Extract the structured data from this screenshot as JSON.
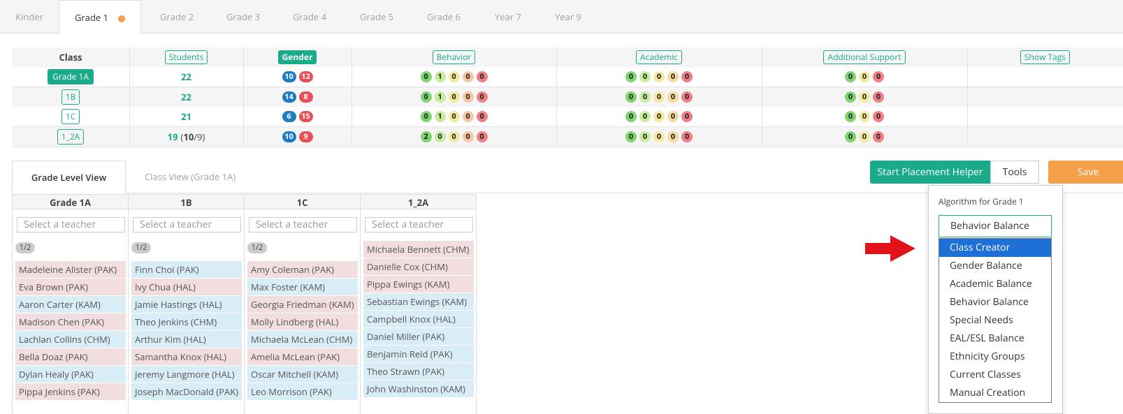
{
  "tabs": {
    "items": [
      "Kinder",
      "Grade 1",
      "Grade 2",
      "Grade 3",
      "Grade 4",
      "Grade 5",
      "Grade 6",
      "Year 7",
      "Year 9"
    ],
    "active": 1
  },
  "summary": {
    "headers": [
      "Class",
      "Students",
      "Gender",
      "Behavior",
      "Academic",
      "Additional Support",
      "Show Tags"
    ],
    "palettes": {
      "gender": [
        "#1f7bc1",
        "#e5505a"
      ],
      "behavior": [
        "#7ed46f",
        "#c9ed9f",
        "#f3e9a0",
        "#f6c7a0",
        "#ef7f84"
      ],
      "academic": [
        "#7ed46f",
        "#c9ed9f",
        "#f3e9a0",
        "#f6d9a0",
        "#ef7f84"
      ],
      "support": [
        "#7ed46f",
        "#f3e9a0",
        "#ef7f84"
      ]
    },
    "rows": [
      {
        "class": "Grade 1A",
        "students": "22",
        "gender": [
          "10",
          "12"
        ],
        "behavior": [
          "0",
          "1",
          "0",
          "0",
          "0"
        ],
        "academic": [
          "0",
          "0",
          "0",
          "0",
          "0"
        ],
        "support": [
          "0",
          "0",
          "0"
        ]
      },
      {
        "class": "1B",
        "students": "22",
        "gender": [
          "14",
          "8"
        ],
        "behavior": [
          "0",
          "1",
          "0",
          "0",
          "0"
        ],
        "academic": [
          "0",
          "0",
          "0",
          "0",
          "0"
        ],
        "support": [
          "0",
          "0",
          "0"
        ]
      },
      {
        "class": "1C",
        "students": "21",
        "gender": [
          "6",
          "15"
        ],
        "behavior": [
          "0",
          "1",
          "0",
          "0",
          "0"
        ],
        "academic": [
          "0",
          "0",
          "0",
          "0",
          "0"
        ],
        "support": [
          "0",
          "0",
          "0"
        ]
      },
      {
        "class": "1_2A",
        "students": "19",
        "students_extra": [
          "(",
          "10",
          "/9)"
        ],
        "gender": [
          "10",
          "9"
        ],
        "behavior": [
          "2",
          "0",
          "0",
          "0",
          "0"
        ],
        "academic": [
          "0",
          "0",
          "0",
          "0",
          "0"
        ],
        "support": [
          "0",
          "0",
          "0"
        ]
      }
    ]
  },
  "views": {
    "tabs": [
      "Grade Level View",
      "Class View (Grade 1A)"
    ]
  },
  "buttons": {
    "helper": "Start Placement Helper",
    "tools": "Tools",
    "save": "Save"
  },
  "algorithm": {
    "label": "Algorithm for Grade 1",
    "selected": "Behavior Balance",
    "options": [
      "Class Creator",
      "Gender Balance",
      "Academic Balance",
      "Behavior Balance",
      "Special Needs",
      "EAL/ESL Balance",
      "Ethnicity Groups",
      "Current Classes",
      "Manual Creation"
    ],
    "highlighted": 0
  },
  "columns": [
    {
      "name": "Grade 1A",
      "teacher": "Select a teacher",
      "badge": "1/2",
      "students": [
        {
          "name": "Madeleine Alister (PAK)",
          "color": "#f2dede"
        },
        {
          "name": "Eva Brown (PAK)",
          "color": "#f2dede"
        },
        {
          "name": "Aaron Carter (KAM)",
          "color": "#d9edf7"
        },
        {
          "name": "Madison Chen (PAK)",
          "color": "#f2dede"
        },
        {
          "name": "Lachlan Collins (CHM)",
          "color": "#d9edf7"
        },
        {
          "name": "Bella Doaz (PAK)",
          "color": "#f2dede"
        },
        {
          "name": "Dylan Healy (PAK)",
          "color": "#d9edf7"
        },
        {
          "name": "Pippa Jenkins (PAK)",
          "color": "#f2dede"
        }
      ]
    },
    {
      "name": "1B",
      "teacher": "Select a teacher",
      "badge": "1/2",
      "students": [
        {
          "name": "Finn Choi (PAK)",
          "color": "#d9edf7"
        },
        {
          "name": "Ivy Chua (HAL)",
          "color": "#f2dede"
        },
        {
          "name": "Jamie Hastings (HAL)",
          "color": "#d9edf7"
        },
        {
          "name": "Theo Jenkins (CHM)",
          "color": "#d9edf7"
        },
        {
          "name": "Arthur Kim (HAL)",
          "color": "#d9edf7"
        },
        {
          "name": "Samantha Knox (HAL)",
          "color": "#f2dede"
        },
        {
          "name": "Jeremy Langmore (HAL)",
          "color": "#d9edf7"
        },
        {
          "name": "Joseph MacDonald (PAK)",
          "color": "#d9edf7"
        }
      ]
    },
    {
      "name": "1C",
      "teacher": "Select a teacher",
      "badge": "1/2",
      "students": [
        {
          "name": "Amy Coleman (PAK)",
          "color": "#f2dede"
        },
        {
          "name": "Max Foster (KAM)",
          "color": "#d9edf7"
        },
        {
          "name": "Georgia Friedman (KAM)",
          "color": "#f2dede"
        },
        {
          "name": "Molly Lindberg (HAL)",
          "color": "#f2dede"
        },
        {
          "name": "Michaela McLean (CHM)",
          "color": "#d9edf7"
        },
        {
          "name": "Amelia McLean (PAK)",
          "color": "#f2dede"
        },
        {
          "name": "Oscar Mitchell (KAM)",
          "color": "#d9edf7"
        },
        {
          "name": "Leo Morrison (PAK)",
          "color": "#d9edf7"
        }
      ]
    },
    {
      "name": "1_2A",
      "teacher": "Select a teacher",
      "students": [
        {
          "name": "Michaela Bennett (CHM)",
          "color": "#f2dede"
        },
        {
          "name": "Danielle Cox (CHM)",
          "color": "#f2dede"
        },
        {
          "name": "Pippa Ewings (KAM)",
          "color": "#f2dede"
        },
        {
          "name": "Sebastian Ewings (KAM)",
          "color": "#d9edf7"
        },
        {
          "name": "Campbell Knox (HAL)",
          "color": "#d9edf7"
        },
        {
          "name": "Daniel Miller (PAK)",
          "color": "#d9edf7"
        },
        {
          "name": "Benjamin Reid (PAK)",
          "color": "#d9edf7"
        },
        {
          "name": "Theo Strawn (PAK)",
          "color": "#d9edf7"
        },
        {
          "name": "John Washinston (KAM)",
          "color": "#d9edf7"
        }
      ]
    }
  ]
}
